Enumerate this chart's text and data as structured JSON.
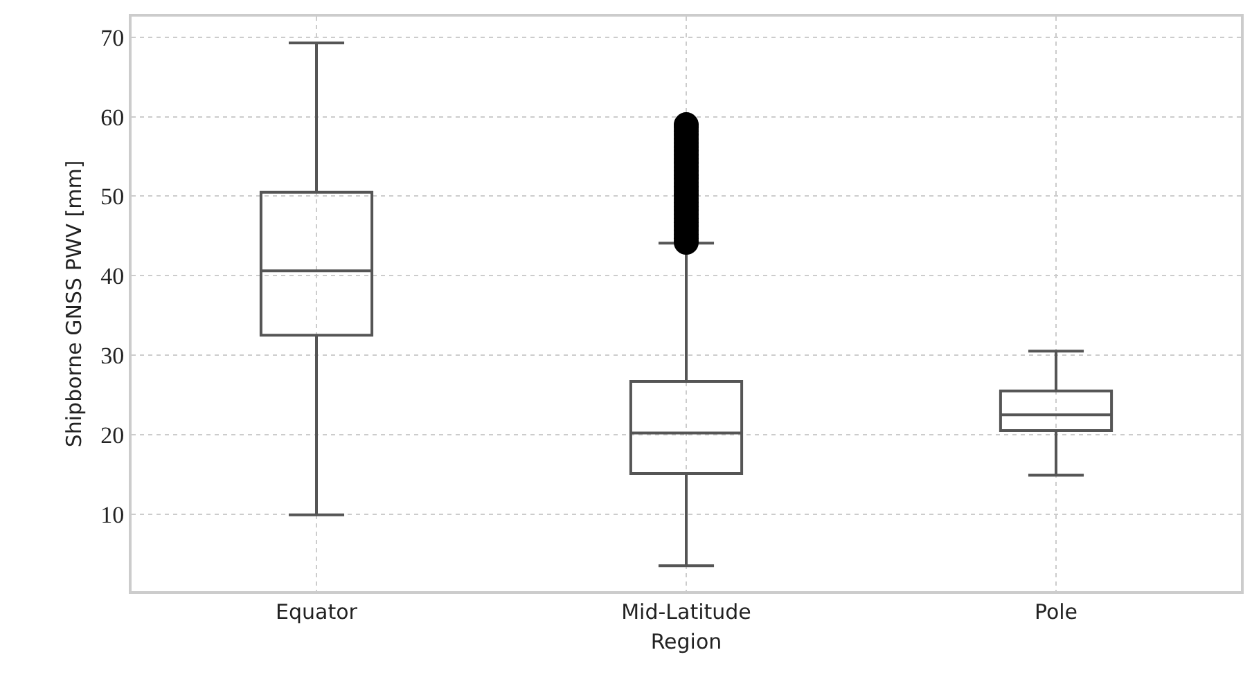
{
  "chart_data": {
    "type": "box",
    "xlabel": "Region",
    "ylabel": "Shipborne GNSS PWV [mm]",
    "categories": [
      "Equator",
      "Mid-Latitude",
      "Pole"
    ],
    "color": "#555555",
    "ylim": [
      0.3,
      72.6
    ],
    "yticks": [
      10,
      20,
      30,
      40,
      50,
      60,
      70
    ],
    "grid": true,
    "boxes": [
      {
        "low": 9.9,
        "q1": 32.5,
        "median": 40.6,
        "q3": 50.5,
        "high": 69.3
      },
      {
        "low": 3.5,
        "q1": 15.1,
        "median": 20.2,
        "q3": 26.7,
        "high": 44.1,
        "outliers": [
          44.2,
          44.7,
          45.2,
          45.7,
          46.2,
          46.7,
          47.2,
          47.7,
          48.2,
          48.7,
          49.2,
          49.7,
          50.2,
          50.7,
          51.2,
          51.7,
          52.2,
          52.7,
          53.2,
          53.7,
          54.2,
          54.7,
          55.2,
          55.7,
          56.2,
          56.7,
          57.2,
          57.7,
          58.2,
          58.7,
          59.0
        ]
      },
      {
        "low": 14.9,
        "q1": 20.5,
        "median": 22.5,
        "q3": 25.5,
        "high": 30.5
      }
    ]
  }
}
